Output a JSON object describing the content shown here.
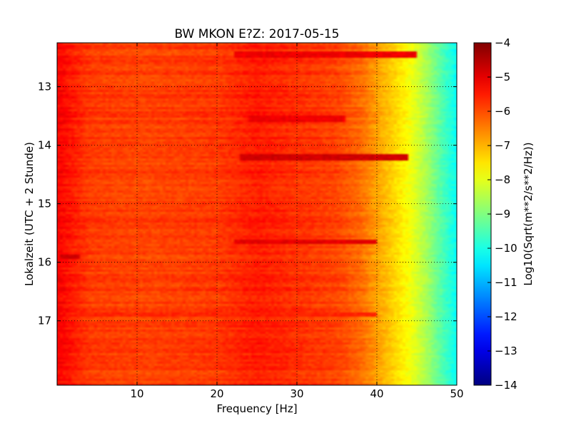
{
  "chart_data": {
    "type": "heatmap",
    "title": "BW MKON E?Z: 2017-05-15",
    "xlabel": "Frequency [Hz]",
    "ylabel": "Lokalzeit (UTC + 2 Stunde)",
    "xlim": [
      0,
      50
    ],
    "ylim": [
      12.25,
      18.1
    ],
    "y_inverted": true,
    "x_ticks": [
      10,
      20,
      30,
      40,
      50
    ],
    "x_tick_labels": [
      "10",
      "20",
      "30",
      "40",
      "50"
    ],
    "y_ticks": [
      13,
      14,
      15,
      16,
      17
    ],
    "y_tick_labels": [
      "13",
      "14",
      "15",
      "16",
      "17"
    ],
    "grid": true,
    "colormap": "jet",
    "colorbar": {
      "label": "Log10(Sqrt(m**2/s**2/Hz))",
      "range": [
        -14,
        -4
      ],
      "ticks": [
        -4,
        -5,
        -6,
        -7,
        -8,
        -9,
        -10,
        -11,
        -12,
        -13,
        -14
      ],
      "tick_labels": [
        "−4",
        "−5",
        "−6",
        "−7",
        "−8",
        "−9",
        "−10",
        "−11",
        "−12",
        "−13",
        "−14"
      ]
    },
    "spectral_profile": {
      "frequency_hz": [
        0,
        2,
        4,
        10,
        20,
        25,
        30,
        35,
        38,
        40,
        42,
        44,
        46,
        48,
        50
      ],
      "level_log10": [
        -5.2,
        -5.5,
        -5.8,
        -5.9,
        -5.8,
        -5.5,
        -5.7,
        -5.9,
        -6.3,
        -6.8,
        -7.3,
        -7.8,
        -8.5,
        -9.4,
        -10.2
      ]
    },
    "highlighted_bands": [
      {
        "time_h": 12.45,
        "f_start_hz": 22,
        "f_end_hz": 45,
        "level_log10": -5.1
      },
      {
        "time_h": 13.55,
        "f_start_hz": 24,
        "f_end_hz": 36,
        "level_log10": -5.1
      },
      {
        "time_h": 14.2,
        "f_start_hz": 23,
        "f_end_hz": 44,
        "level_log10": -4.8
      },
      {
        "time_h": 15.65,
        "f_start_hz": 22,
        "f_end_hz": 40,
        "level_log10": -5.0
      },
      {
        "time_h": 15.9,
        "f_start_hz": 0.5,
        "f_end_hz": 3,
        "level_log10": -4.8
      },
      {
        "time_h": 16.9,
        "f_start_hz": 0,
        "f_end_hz": 40,
        "level_log10": -5.6
      }
    ]
  }
}
